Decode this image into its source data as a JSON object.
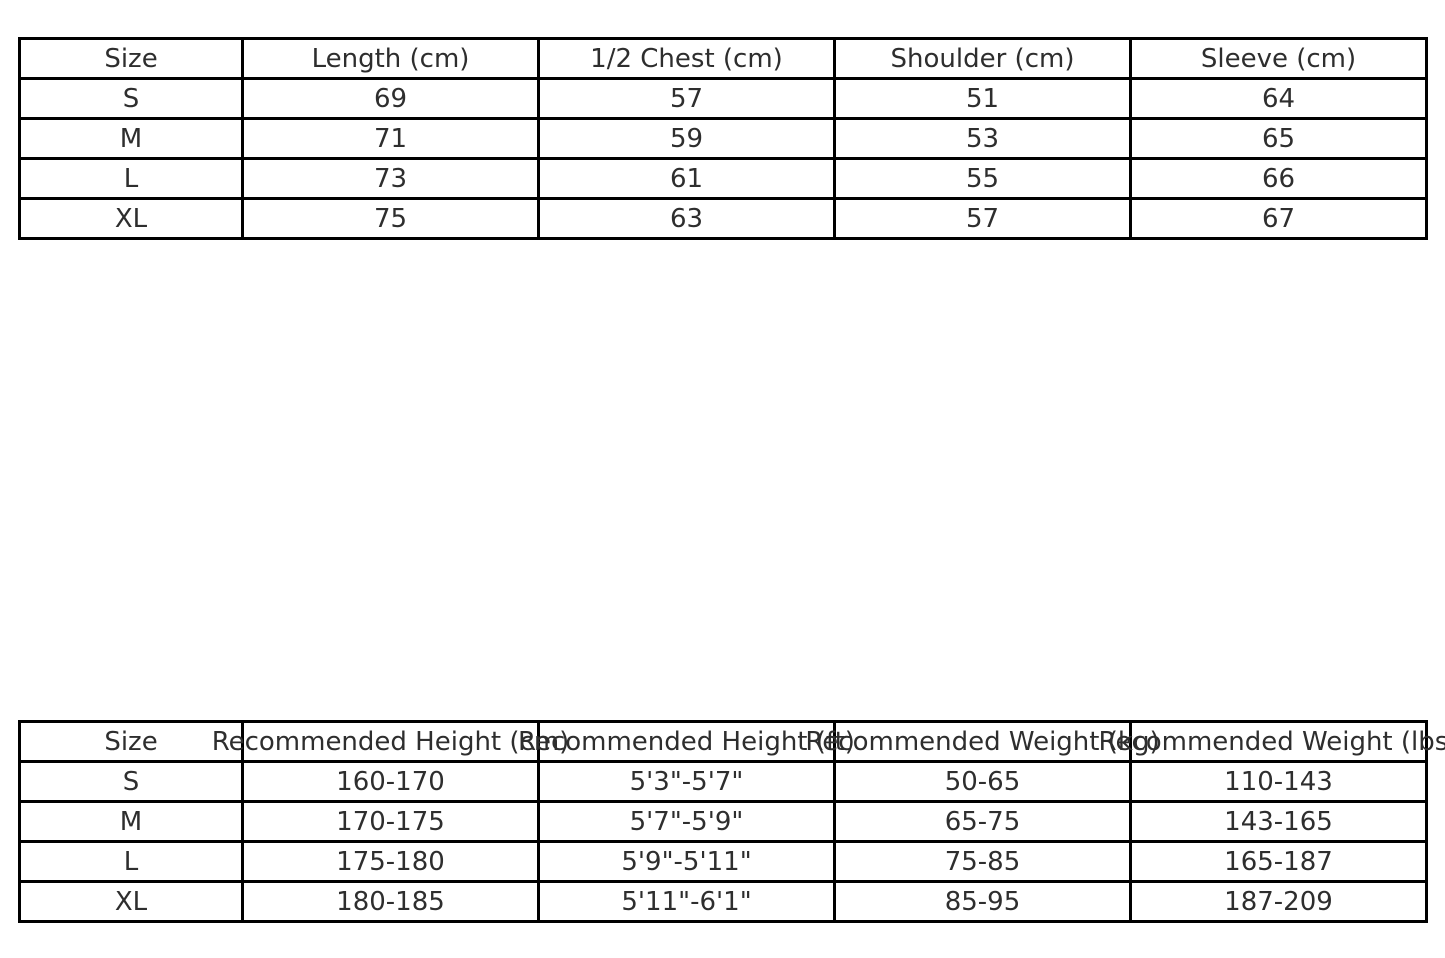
{
  "theme": {
    "background": "#ffffff",
    "border_color": "#000000",
    "text_color": "#2e2e2e"
  },
  "chart_data": [
    {
      "type": "table",
      "name": "garment-measurements",
      "columns": [
        "Size",
        "Length (cm)",
        "1/2 Chest (cm)",
        "Shoulder (cm)",
        "Sleeve (cm)"
      ],
      "rows": [
        [
          "S",
          "69",
          "57",
          "51",
          "64"
        ],
        [
          "M",
          "71",
          "59",
          "53",
          "65"
        ],
        [
          "L",
          "73",
          "61",
          "55",
          "66"
        ],
        [
          "XL",
          "75",
          "63",
          "57",
          "67"
        ]
      ],
      "layout": {
        "grid": "full-borders",
        "header_overflow": false
      }
    },
    {
      "type": "table",
      "name": "recommended-fit",
      "columns": [
        "Size",
        "Recommended Height (cm)",
        "Recommended Height (ft)",
        "Recommended Weight (kg)",
        "Recommended Weight (lbs)"
      ],
      "rows": [
        [
          "S",
          "160-170",
          "5'3\"-5'7\"",
          "50-65",
          "110-143"
        ],
        [
          "M",
          "170-175",
          "5'7\"-5'9\"",
          "65-75",
          "143-165"
        ],
        [
          "L",
          "175-180",
          "5'9\"-5'11\"",
          "75-85",
          "165-187"
        ],
        [
          "XL",
          "180-185",
          "5'11\"-6'1\"",
          "85-95",
          "187-209"
        ]
      ],
      "layout": {
        "grid": "full-borders",
        "header_overflow": true,
        "last_header_clipped_by_image_edge": true
      }
    }
  ]
}
